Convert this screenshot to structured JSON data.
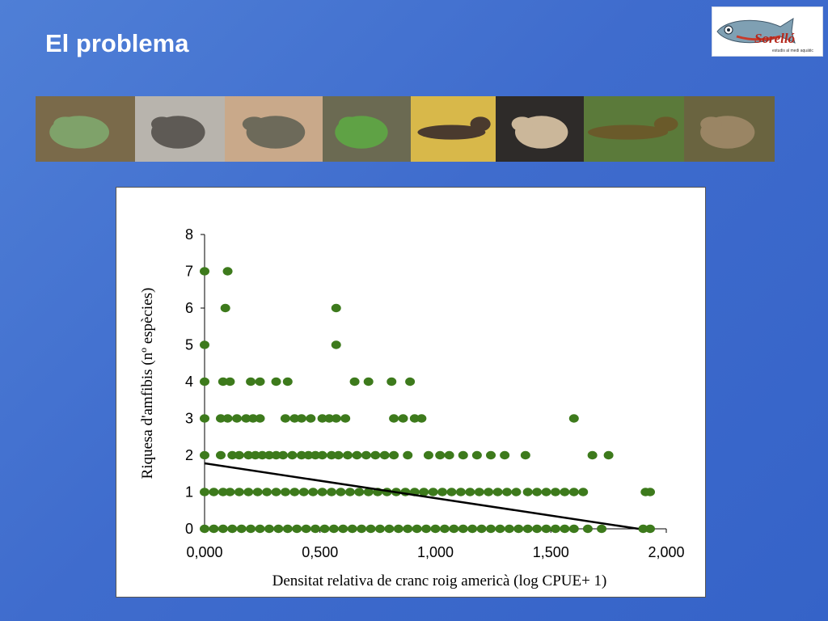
{
  "slide": {
    "title": "El problema"
  },
  "logo": {
    "name": "Sorelló",
    "tagline": "estudis al medi aquàtic"
  },
  "photos": [
    {
      "icon": "green-tree-frog-photo",
      "bg": "#7a6a4a",
      "fg": "#7fa26a"
    },
    {
      "icon": "grey-toad-on-rock-photo",
      "bg": "#b8b4ad",
      "fg": "#5e5a55"
    },
    {
      "icon": "spotted-toad-photo",
      "bg": "#c9a98a",
      "fg": "#6d6a5a"
    },
    {
      "icon": "green-frog-photo",
      "bg": "#6b6a52",
      "fg": "#5fa245"
    },
    {
      "icon": "newt-on-net-photo",
      "bg": "#d8b84a",
      "fg": "#4a3a2e"
    },
    {
      "icon": "spadefoot-toad-photo",
      "bg": "#2e2b29",
      "fg": "#cbb79a"
    },
    {
      "icon": "marbled-newt-photo",
      "bg": "#5b7a3a",
      "fg": "#6a5a2a"
    },
    {
      "icon": "brown-toad-photo",
      "bg": "#6a6440",
      "fg": "#9a8564"
    }
  ],
  "chart_data": {
    "type": "scatter",
    "xlabel": "Densitat relativa de cranc roig americà (log CPUE+ 1)",
    "ylabel": "Riquesa d'amfibis (nº espècies)",
    "xlim": [
      0,
      2
    ],
    "ylim": [
      0,
      8
    ],
    "x_ticks": [
      "0,000",
      "0,500",
      "1,000",
      "1,500",
      "2,000"
    ],
    "y_ticks": [
      "0",
      "1",
      "2",
      "3",
      "4",
      "5",
      "6",
      "7",
      "8"
    ],
    "point_color": "#3d7a1c",
    "trend_line": {
      "x": [
        0,
        1.88
      ],
      "y": [
        1.78,
        0.0
      ],
      "color": "#000000"
    },
    "points": [
      [
        0.0,
        7
      ],
      [
        0.1,
        7
      ],
      [
        0.09,
        6
      ],
      [
        0.57,
        6
      ],
      [
        0.0,
        5
      ],
      [
        0.57,
        5
      ],
      [
        0.0,
        4
      ],
      [
        0.08,
        4
      ],
      [
        0.11,
        4
      ],
      [
        0.2,
        4
      ],
      [
        0.24,
        4
      ],
      [
        0.31,
        4
      ],
      [
        0.36,
        4
      ],
      [
        0.65,
        4
      ],
      [
        0.71,
        4
      ],
      [
        0.81,
        4
      ],
      [
        0.89,
        4
      ],
      [
        0.0,
        3
      ],
      [
        0.07,
        3
      ],
      [
        0.1,
        3
      ],
      [
        0.14,
        3
      ],
      [
        0.18,
        3
      ],
      [
        0.21,
        3
      ],
      [
        0.24,
        3
      ],
      [
        0.35,
        3
      ],
      [
        0.39,
        3
      ],
      [
        0.42,
        3
      ],
      [
        0.46,
        3
      ],
      [
        0.51,
        3
      ],
      [
        0.54,
        3
      ],
      [
        0.57,
        3
      ],
      [
        0.61,
        3
      ],
      [
        0.82,
        3
      ],
      [
        0.86,
        3
      ],
      [
        0.91,
        3
      ],
      [
        0.94,
        3
      ],
      [
        1.6,
        3
      ],
      [
        0.0,
        2
      ],
      [
        0.07,
        2
      ],
      [
        0.12,
        2
      ],
      [
        0.15,
        2
      ],
      [
        0.19,
        2
      ],
      [
        0.22,
        2
      ],
      [
        0.25,
        2
      ],
      [
        0.28,
        2
      ],
      [
        0.31,
        2
      ],
      [
        0.34,
        2
      ],
      [
        0.38,
        2
      ],
      [
        0.42,
        2
      ],
      [
        0.45,
        2
      ],
      [
        0.48,
        2
      ],
      [
        0.51,
        2
      ],
      [
        0.55,
        2
      ],
      [
        0.58,
        2
      ],
      [
        0.62,
        2
      ],
      [
        0.66,
        2
      ],
      [
        0.7,
        2
      ],
      [
        0.74,
        2
      ],
      [
        0.78,
        2
      ],
      [
        0.82,
        2
      ],
      [
        0.88,
        2
      ],
      [
        0.97,
        2
      ],
      [
        1.02,
        2
      ],
      [
        1.06,
        2
      ],
      [
        1.12,
        2
      ],
      [
        1.18,
        2
      ],
      [
        1.24,
        2
      ],
      [
        1.3,
        2
      ],
      [
        1.39,
        2
      ],
      [
        1.68,
        2
      ],
      [
        1.75,
        2
      ],
      [
        0.0,
        1
      ],
      [
        0.04,
        1
      ],
      [
        0.08,
        1
      ],
      [
        0.11,
        1
      ],
      [
        0.15,
        1
      ],
      [
        0.19,
        1
      ],
      [
        0.23,
        1
      ],
      [
        0.27,
        1
      ],
      [
        0.31,
        1
      ],
      [
        0.35,
        1
      ],
      [
        0.39,
        1
      ],
      [
        0.43,
        1
      ],
      [
        0.47,
        1
      ],
      [
        0.51,
        1
      ],
      [
        0.55,
        1
      ],
      [
        0.59,
        1
      ],
      [
        0.63,
        1
      ],
      [
        0.67,
        1
      ],
      [
        0.71,
        1
      ],
      [
        0.75,
        1
      ],
      [
        0.79,
        1
      ],
      [
        0.83,
        1
      ],
      [
        0.87,
        1
      ],
      [
        0.91,
        1
      ],
      [
        0.95,
        1
      ],
      [
        0.99,
        1
      ],
      [
        1.03,
        1
      ],
      [
        1.07,
        1
      ],
      [
        1.11,
        1
      ],
      [
        1.15,
        1
      ],
      [
        1.19,
        1
      ],
      [
        1.23,
        1
      ],
      [
        1.27,
        1
      ],
      [
        1.31,
        1
      ],
      [
        1.35,
        1
      ],
      [
        1.4,
        1
      ],
      [
        1.44,
        1
      ],
      [
        1.48,
        1
      ],
      [
        1.52,
        1
      ],
      [
        1.56,
        1
      ],
      [
        1.6,
        1
      ],
      [
        1.64,
        1
      ],
      [
        1.91,
        1
      ],
      [
        1.93,
        1
      ],
      [
        0.0,
        0
      ],
      [
        0.04,
        0
      ],
      [
        0.08,
        0
      ],
      [
        0.12,
        0
      ],
      [
        0.16,
        0
      ],
      [
        0.2,
        0
      ],
      [
        0.24,
        0
      ],
      [
        0.28,
        0
      ],
      [
        0.32,
        0
      ],
      [
        0.36,
        0
      ],
      [
        0.4,
        0
      ],
      [
        0.44,
        0
      ],
      [
        0.48,
        0
      ],
      [
        0.52,
        0
      ],
      [
        0.56,
        0
      ],
      [
        0.6,
        0
      ],
      [
        0.64,
        0
      ],
      [
        0.68,
        0
      ],
      [
        0.72,
        0
      ],
      [
        0.76,
        0
      ],
      [
        0.8,
        0
      ],
      [
        0.84,
        0
      ],
      [
        0.88,
        0
      ],
      [
        0.92,
        0
      ],
      [
        0.96,
        0
      ],
      [
        1.0,
        0
      ],
      [
        1.04,
        0
      ],
      [
        1.08,
        0
      ],
      [
        1.12,
        0
      ],
      [
        1.16,
        0
      ],
      [
        1.2,
        0
      ],
      [
        1.24,
        0
      ],
      [
        1.28,
        0
      ],
      [
        1.32,
        0
      ],
      [
        1.36,
        0
      ],
      [
        1.4,
        0
      ],
      [
        1.44,
        0
      ],
      [
        1.48,
        0
      ],
      [
        1.52,
        0
      ],
      [
        1.56,
        0
      ],
      [
        1.6,
        0
      ],
      [
        1.66,
        0
      ],
      [
        1.72,
        0
      ],
      [
        1.9,
        0
      ],
      [
        1.93,
        0
      ]
    ]
  }
}
